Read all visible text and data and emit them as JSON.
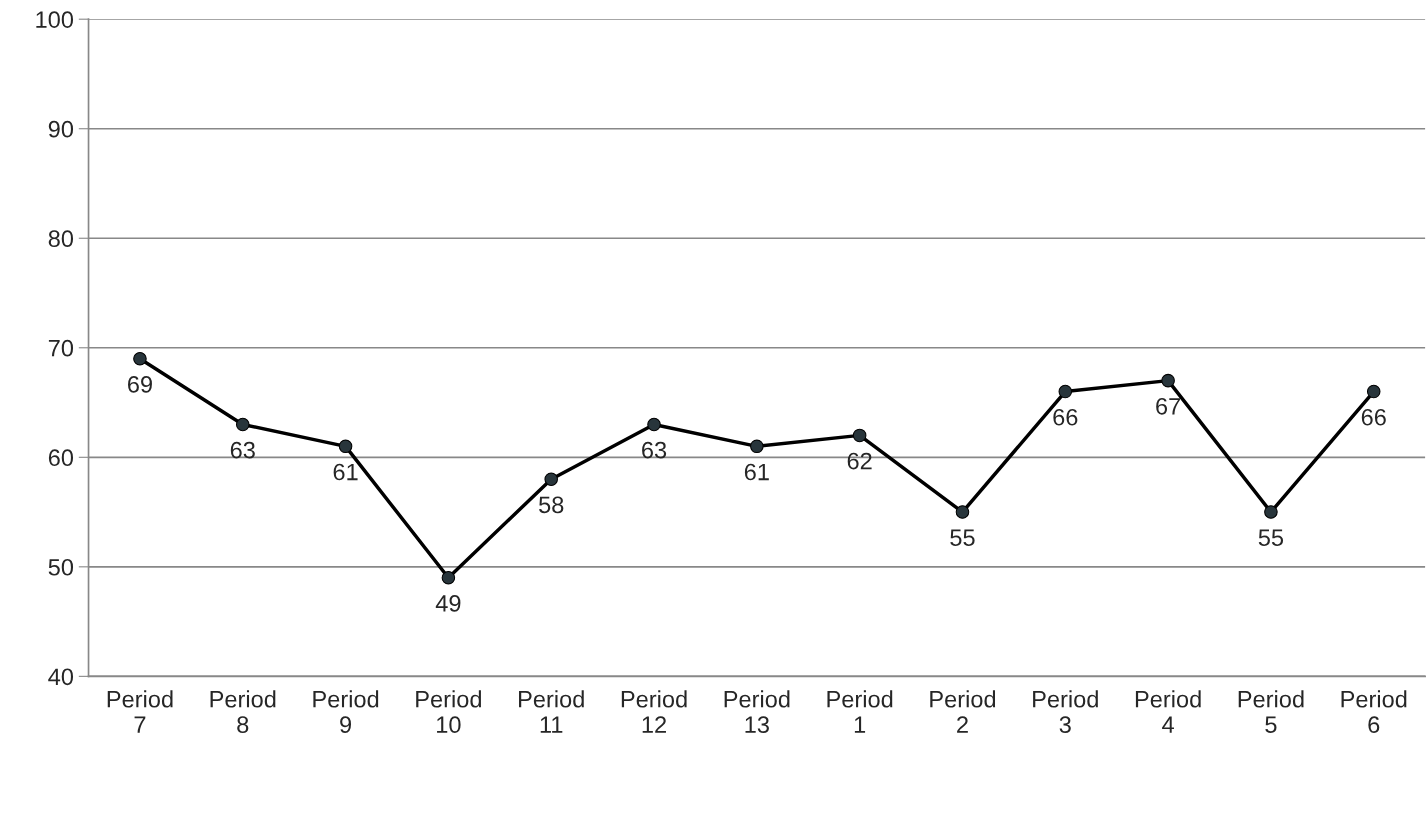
{
  "chart_data": {
    "type": "line",
    "categories": [
      "Period\n7",
      "Period\n8",
      "Period\n9",
      "Period\n10",
      "Period\n11",
      "Period\n12",
      "Period\n13",
      "Period\n1",
      "Period\n2",
      "Period\n3",
      "Period\n4",
      "Period\n5",
      "Period\n6"
    ],
    "series": [
      {
        "color": "#000000",
        "values": [
          69,
          63,
          61,
          49,
          58,
          63,
          61,
          62,
          55,
          66,
          67,
          55,
          66
        ]
      }
    ],
    "ylim": [
      40,
      100
    ],
    "yticks": [
      40,
      50,
      60,
      70,
      80,
      90,
      100
    ],
    "grid": "y",
    "marker": "circle",
    "line_style": "solid",
    "data_labels": true
  }
}
